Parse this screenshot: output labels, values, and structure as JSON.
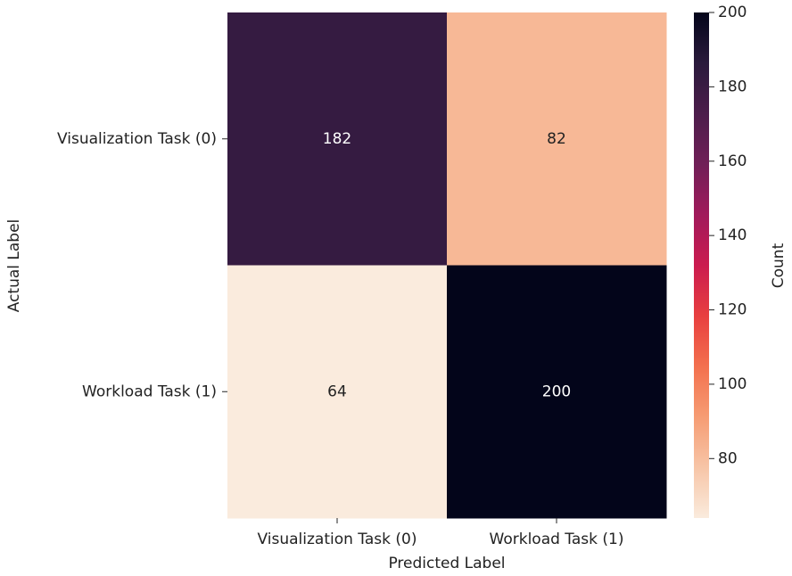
{
  "chart_data": {
    "type": "heatmap",
    "x_label": "Predicted Label",
    "y_label": "Actual Label",
    "x_categories": [
      "Visualization Task (0)",
      "Workload Task (1)"
    ],
    "y_categories": [
      "Visualization Task (0)",
      "Workload Task (1)"
    ],
    "values": [
      [
        182,
        82
      ],
      [
        64,
        200
      ]
    ],
    "colormap": [
      "#faebdd",
      "#f7c5a7",
      "#f69c73",
      "#f3704e",
      "#e83f3f",
      "#cb1b4f",
      "#a11a5b",
      "#701f57",
      "#4c1d4b",
      "#2a1a3c",
      "#03051a"
    ],
    "clim": [
      64,
      200
    ],
    "cticks": [
      80,
      100,
      120,
      140,
      160,
      180,
      200
    ],
    "colorbar_label": "Count"
  }
}
